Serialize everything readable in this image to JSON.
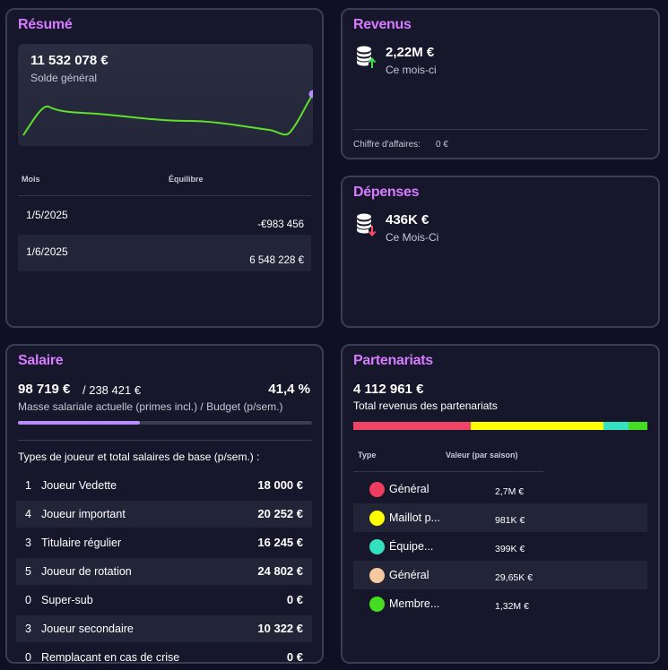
{
  "resume": {
    "title": "Résumé",
    "balance": "11 532 078 €",
    "balance_label": "Solde général",
    "col_month": "Mois",
    "col_balance": "Équilibre",
    "rows": [
      {
        "month": "1/5/2025",
        "value": "-€983 456"
      },
      {
        "month": "1/6/2025",
        "value": "6 548 228 €"
      }
    ],
    "accent_line": "#5fe02b",
    "accent_dot": "#b98cff"
  },
  "revenus": {
    "title": "Revenus",
    "value": "2,22M €",
    "label": "Ce mois-ci",
    "footer_label": "Chiffre d'affaires:",
    "footer_value": "0 €",
    "icon": "coins-up-icon"
  },
  "depenses": {
    "title": "Dépenses",
    "value": "436K €",
    "label": "Ce Mois-Ci",
    "icon": "coins-down-icon"
  },
  "salaire": {
    "title": "Salaire",
    "current": "98 719 €",
    "budget": "/ 238 421 €",
    "percent": "41,4 %",
    "progress": 0.414,
    "subtitle": "Masse salariale actuelle (primes incl.) / Budget (p/sem.)",
    "types_heading": "Types de joueur et total salaires de base (p/sem.) :",
    "items": [
      {
        "count": "1",
        "label": "Joueur Vedette",
        "value": "18 000 €"
      },
      {
        "count": "4",
        "label": "Joueur important",
        "value": "20 252 €"
      },
      {
        "count": "3",
        "label": "Titulaire régulier",
        "value": "16 245 €"
      },
      {
        "count": "5",
        "label": "Joueur de rotation",
        "value": "24 802 €"
      },
      {
        "count": "0",
        "label": "Super-sub",
        "value": "0 €"
      },
      {
        "count": "3",
        "label": "Joueur secondaire",
        "value": "10 322 €"
      },
      {
        "count": "0",
        "label": "Remplaçant en cas de crise",
        "value": "0 €"
      }
    ]
  },
  "partenariats": {
    "title": "Partenariats",
    "total": "4 112 961 €",
    "total_label": "Total revenus des partenariats",
    "col_type": "Type",
    "col_value": "Valeur (par saison)",
    "segments": [
      {
        "color": "#ee4466",
        "share": 0.4
      },
      {
        "color": "#ffff00",
        "share": 0.45
      },
      {
        "color": "#33e0c0",
        "share": 0.085
      },
      {
        "color": "#44dd22",
        "share": 0.065
      }
    ],
    "rows": [
      {
        "name": "Général",
        "value": "2,7M €",
        "color": "#ee3d5f"
      },
      {
        "name": "Maillot p...",
        "value": "981K €",
        "color": "#ffff00"
      },
      {
        "name": "Équipe...",
        "value": "399K €",
        "color": "#33e0c0"
      },
      {
        "name": "Général",
        "value": "29,65K €",
        "color": "#f6c8a0"
      },
      {
        "name": "Membre...",
        "value": "1,32M €",
        "color": "#44dd22"
      }
    ]
  }
}
